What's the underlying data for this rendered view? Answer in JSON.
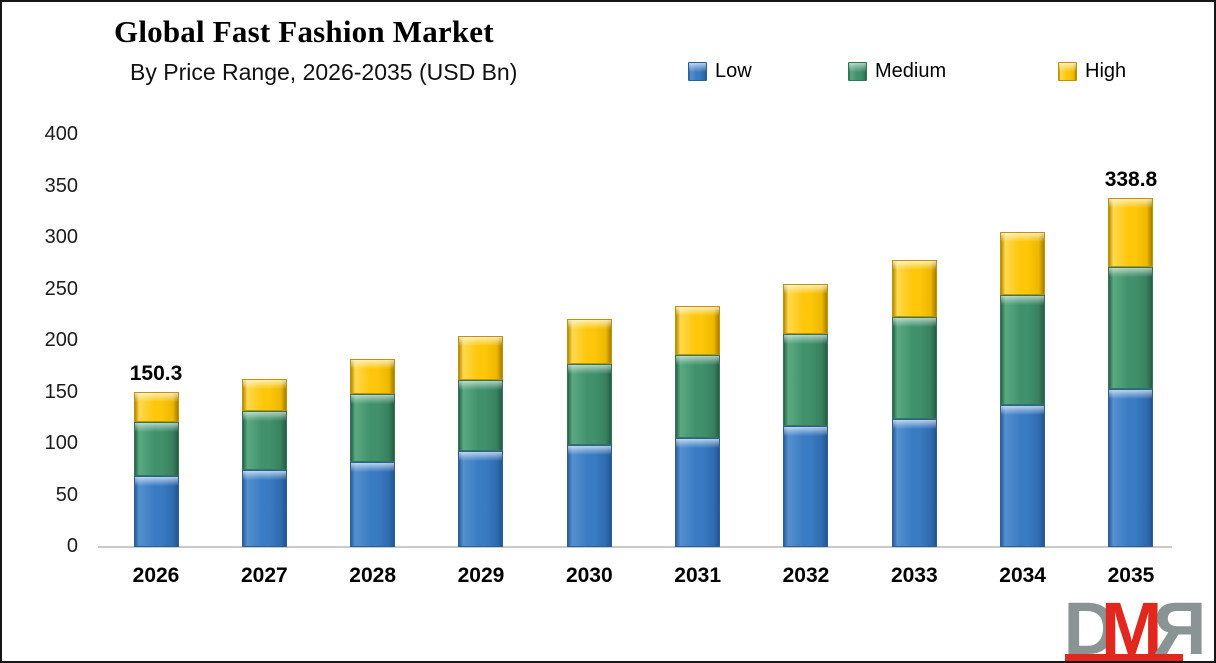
{
  "header": {
    "title": "Global Fast Fashion Market",
    "subtitle": "By Price Range, 2026-2035 (USD Bn)"
  },
  "chart_data": {
    "type": "bar",
    "stacked": true,
    "title": "Global Fast Fashion Market",
    "subtitle": "By Price Range, 2026-2035 (USD Bn)",
    "unit": "USD Bn",
    "categories": [
      "2026",
      "2027",
      "2028",
      "2029",
      "2030",
      "2031",
      "2032",
      "2033",
      "2034",
      "2035"
    ],
    "series": [
      {
        "name": "Low",
        "color": "#3a7cc3",
        "values": [
          69.0,
          75.0,
          82.5,
          93.0,
          99.0,
          106.0,
          117.5,
          124.5,
          138.0,
          153.5
        ]
      },
      {
        "name": "Medium",
        "color": "#41926c",
        "values": [
          52.5,
          57.0,
          66.0,
          69.5,
          78.5,
          80.5,
          89.0,
          99.0,
          106.5,
          118.3
        ]
      },
      {
        "name": "High",
        "color": "#fec70a",
        "values": [
          28.8,
          31.0,
          34.5,
          42.5,
          44.0,
          47.5,
          49.0,
          55.5,
          61.5,
          67.0
        ]
      }
    ],
    "totals_labeled": {
      "2026": "150.3",
      "2035": "338.8"
    },
    "ylim": [
      0,
      400
    ],
    "yticks": [
      0,
      50,
      100,
      150,
      200,
      250,
      300,
      350,
      400
    ],
    "grid": false,
    "legend_position": "top"
  },
  "legend": {
    "items": [
      "Low",
      "Medium",
      "High"
    ]
  },
  "logo": {
    "letters": [
      "D",
      "M",
      "R"
    ],
    "gray": "#8a9494",
    "red": "#e2281e"
  }
}
